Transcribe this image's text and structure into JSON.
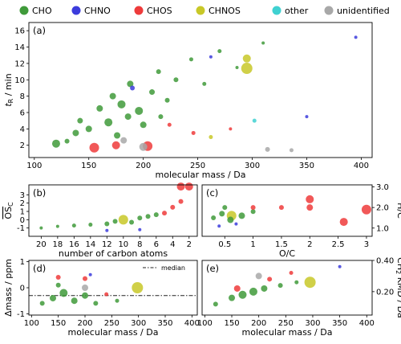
{
  "legend": [
    {
      "name": "CHO",
      "color": "#3f9a3a"
    },
    {
      "name": "CHNO",
      "color": "#3c3cdc"
    },
    {
      "name": "CHOS",
      "color": "#ee3b3b"
    },
    {
      "name": "CHNOS",
      "color": "#c8c828"
    },
    {
      "name": "other",
      "color": "#3fd1d1"
    },
    {
      "name": "unidentified",
      "color": "#a8a8a8"
    }
  ],
  "chart_data": [
    {
      "panel": "(a)",
      "type": "scatter",
      "xlabel": "molecular mass / Da",
      "ylabel": "t_R / min",
      "xlim": [
        95,
        410
      ],
      "ylim": [
        0.5,
        17
      ],
      "xticks": [
        100,
        150,
        200,
        250,
        300,
        350,
        400
      ],
      "yticks": [
        2,
        4,
        6,
        8,
        10,
        12,
        14,
        16
      ],
      "points": [
        {
          "class": "CHO",
          "x": 120,
          "y": 2.2,
          "s": 5
        },
        {
          "class": "CHO",
          "x": 138,
          "y": 3.5,
          "s": 4
        },
        {
          "class": "CHO",
          "x": 142,
          "y": 5.0,
          "s": 3.5
        },
        {
          "class": "CHO",
          "x": 150,
          "y": 4.0,
          "s": 4
        },
        {
          "class": "CHO",
          "x": 160,
          "y": 6.5,
          "s": 4
        },
        {
          "class": "CHO",
          "x": 168,
          "y": 4.8,
          "s": 5
        },
        {
          "class": "CHO",
          "x": 172,
          "y": 8.0,
          "s": 4
        },
        {
          "class": "CHO",
          "x": 180,
          "y": 7.0,
          "s": 5
        },
        {
          "class": "CHO",
          "x": 186,
          "y": 5.5,
          "s": 4
        },
        {
          "class": "CHO",
          "x": 188,
          "y": 9.5,
          "s": 4
        },
        {
          "class": "CHO",
          "x": 196,
          "y": 6.2,
          "s": 5
        },
        {
          "class": "CHO",
          "x": 200,
          "y": 4.5,
          "s": 4
        },
        {
          "class": "CHO",
          "x": 208,
          "y": 8.5,
          "s": 3.5
        },
        {
          "class": "CHO",
          "x": 214,
          "y": 11.0,
          "s": 3
        },
        {
          "class": "CHO",
          "x": 222,
          "y": 7.5,
          "s": 3
        },
        {
          "class": "CHO",
          "x": 230,
          "y": 10.0,
          "s": 3
        },
        {
          "class": "CHO",
          "x": 244,
          "y": 12.5,
          "s": 2.5
        },
        {
          "class": "CHO",
          "x": 256,
          "y": 9.5,
          "s": 2.5
        },
        {
          "class": "CHO",
          "x": 270,
          "y": 13.5,
          "s": 2.5
        },
        {
          "class": "CHO",
          "x": 286,
          "y": 11.5,
          "s": 2
        },
        {
          "class": "CHO",
          "x": 310,
          "y": 14.5,
          "s": 2
        },
        {
          "class": "CHO",
          "x": 130,
          "y": 2.5,
          "s": 3
        },
        {
          "class": "CHO",
          "x": 176,
          "y": 3.2,
          "s": 4
        },
        {
          "class": "CHO",
          "x": 216,
          "y": 5.5,
          "s": 3
        },
        {
          "class": "CHNO",
          "x": 190,
          "y": 9.0,
          "s": 3
        },
        {
          "class": "CHNO",
          "x": 262,
          "y": 12.8,
          "s": 2
        },
        {
          "class": "CHNO",
          "x": 350,
          "y": 5.5,
          "s": 2
        },
        {
          "class": "CHNO",
          "x": 395,
          "y": 15.2,
          "s": 2
        },
        {
          "class": "CHOS",
          "x": 155,
          "y": 1.7,
          "s": 6
        },
        {
          "class": "CHOS",
          "x": 175,
          "y": 2.0,
          "s": 5
        },
        {
          "class": "CHOS",
          "x": 204,
          "y": 1.9,
          "s": 6
        },
        {
          "class": "CHOS",
          "x": 224,
          "y": 4.5,
          "s": 2.5
        },
        {
          "class": "CHOS",
          "x": 246,
          "y": 3.5,
          "s": 2.5
        },
        {
          "class": "CHOS",
          "x": 280,
          "y": 4.0,
          "s": 2
        },
        {
          "class": "CHNOS",
          "x": 295,
          "y": 11.4,
          "s": 7
        },
        {
          "class": "CHNOS",
          "x": 295,
          "y": 12.6,
          "s": 5
        },
        {
          "class": "CHNOS",
          "x": 262,
          "y": 3.0,
          "s": 2.5
        },
        {
          "class": "other",
          "x": 302,
          "y": 5.0,
          "s": 2.5
        },
        {
          "class": "unidentified",
          "x": 200,
          "y": 1.8,
          "s": 5
        },
        {
          "class": "unidentified",
          "x": 182,
          "y": 2.6,
          "s": 4
        },
        {
          "class": "unidentified",
          "x": 314,
          "y": 1.5,
          "s": 3
        },
        {
          "class": "unidentified",
          "x": 336,
          "y": 1.4,
          "s": 2.5
        }
      ]
    },
    {
      "panel": "(b)",
      "type": "scatter",
      "xlabel": "number of carbon atoms",
      "ylabel": "OS_C",
      "xlim": [
        21.5,
        1
      ],
      "ylim": [
        -2.0,
        4.2
      ],
      "xticks": [
        20,
        18,
        16,
        14,
        12,
        10,
        8,
        6,
        4,
        2
      ],
      "yticks": [
        -1,
        0,
        1,
        2,
        3
      ],
      "points": [
        {
          "class": "CHO",
          "x": 20,
          "y": -1.0,
          "s": 2
        },
        {
          "class": "CHO",
          "x": 18,
          "y": -0.8,
          "s": 2
        },
        {
          "class": "CHO",
          "x": 16,
          "y": -0.7,
          "s": 2.5
        },
        {
          "class": "CHO",
          "x": 14,
          "y": -0.6,
          "s": 2.5
        },
        {
          "class": "CHO",
          "x": 12,
          "y": -0.5,
          "s": 3
        },
        {
          "class": "CHO",
          "x": 11,
          "y": -0.2,
          "s": 3
        },
        {
          "class": "CHO",
          "x": 9,
          "y": -0.3,
          "s": 3
        },
        {
          "class": "CHO",
          "x": 8,
          "y": 0.2,
          "s": 3
        },
        {
          "class": "CHO",
          "x": 7,
          "y": 0.4,
          "s": 3
        },
        {
          "class": "CHO",
          "x": 6,
          "y": 0.6,
          "s": 3
        },
        {
          "class": "CHNOS",
          "x": 10,
          "y": 0.0,
          "s": 6
        },
        {
          "class": "CHOS",
          "x": 5,
          "y": 0.8,
          "s": 3
        },
        {
          "class": "CHOS",
          "x": 4,
          "y": 1.5,
          "s": 3
        },
        {
          "class": "CHOS",
          "x": 3,
          "y": 2.2,
          "s": 3
        },
        {
          "class": "CHOS",
          "x": 3,
          "y": 4.0,
          "s": 5
        },
        {
          "class": "CHOS",
          "x": 2,
          "y": 4.0,
          "s": 5
        },
        {
          "class": "CHNO",
          "x": 12,
          "y": -1.3,
          "s": 2
        },
        {
          "class": "CHNO",
          "x": 8,
          "y": -1.2,
          "s": 2
        }
      ]
    },
    {
      "panel": "(c)",
      "type": "scatter",
      "xlabel": "O/C",
      "ylabel": "H/C",
      "xlim": [
        0.1,
        3.1
      ],
      "ylim": [
        0.6,
        3.1
      ],
      "xticks": [
        0.5,
        1.0,
        1.5,
        2.0,
        2.5,
        3.0
      ],
      "yticks": [
        1.0,
        2.0,
        3.0
      ],
      "points": [
        {
          "class": "CHO",
          "x": 0.3,
          "y": 1.5,
          "s": 3
        },
        {
          "class": "CHO",
          "x": 0.45,
          "y": 1.7,
          "s": 3.5
        },
        {
          "class": "CHO",
          "x": 0.6,
          "y": 1.4,
          "s": 4
        },
        {
          "class": "CHO",
          "x": 0.8,
          "y": 1.6,
          "s": 4
        },
        {
          "class": "CHO",
          "x": 1.0,
          "y": 1.8,
          "s": 3
        },
        {
          "class": "CHO",
          "x": 0.5,
          "y": 2.0,
          "s": 3
        },
        {
          "class": "CHNOS",
          "x": 0.62,
          "y": 1.6,
          "s": 6
        },
        {
          "class": "CHOS",
          "x": 1.0,
          "y": 2.0,
          "s": 3
        },
        {
          "class": "CHOS",
          "x": 1.5,
          "y": 2.0,
          "s": 3
        },
        {
          "class": "CHOS",
          "x": 2.0,
          "y": 2.0,
          "s": 4
        },
        {
          "class": "CHOS",
          "x": 2.0,
          "y": 2.4,
          "s": 5
        },
        {
          "class": "CHOS",
          "x": 2.6,
          "y": 1.3,
          "s": 5
        },
        {
          "class": "CHOS",
          "x": 3.0,
          "y": 1.9,
          "s": 6
        },
        {
          "class": "CHNO",
          "x": 0.4,
          "y": 1.1,
          "s": 2
        },
        {
          "class": "CHNO",
          "x": 0.7,
          "y": 1.2,
          "s": 2
        }
      ]
    },
    {
      "panel": "(d)",
      "type": "scatter",
      "xlabel": "molecular mass / Da",
      "ylabel": "Δmass / ppm",
      "xlim": [
        95,
        410
      ],
      "ylim": [
        -1.05,
        1.05
      ],
      "xticks": [
        100,
        150,
        200,
        250,
        300,
        350,
        400
      ],
      "yticks": [
        -1,
        0,
        1
      ],
      "median": -0.3,
      "median_label": "median",
      "points": [
        {
          "class": "CHO",
          "x": 120,
          "y": -0.6,
          "s": 3
        },
        {
          "class": "CHO",
          "x": 140,
          "y": -0.4,
          "s": 4
        },
        {
          "class": "CHO",
          "x": 160,
          "y": -0.2,
          "s": 5
        },
        {
          "class": "CHO",
          "x": 180,
          "y": -0.5,
          "s": 4
        },
        {
          "class": "CHO",
          "x": 200,
          "y": -0.3,
          "s": 4
        },
        {
          "class": "CHO",
          "x": 220,
          "y": -0.6,
          "s": 3
        },
        {
          "class": "CHO",
          "x": 260,
          "y": -0.5,
          "s": 2.5
        },
        {
          "class": "CHO",
          "x": 150,
          "y": 0.1,
          "s": 3
        },
        {
          "class": "CHNOS",
          "x": 298,
          "y": 0.0,
          "s": 7
        },
        {
          "class": "CHOS",
          "x": 150,
          "y": 0.4,
          "s": 3
        },
        {
          "class": "CHOS",
          "x": 200,
          "y": 0.35,
          "s": 3
        },
        {
          "class": "CHOS",
          "x": 240,
          "y": -0.25,
          "s": 2.5
        },
        {
          "class": "CHNO",
          "x": 210,
          "y": 0.5,
          "s": 2
        },
        {
          "class": "unidentified",
          "x": 200,
          "y": 0.0,
          "s": 4
        }
      ]
    },
    {
      "panel": "(e)",
      "type": "scatter",
      "xlabel": "molecular mass / Da",
      "ylabel": "CH2 KMD / Da",
      "xlim": [
        95,
        410
      ],
      "ylim": [
        0.05,
        0.4
      ],
      "xticks": [
        100,
        150,
        200,
        250,
        300,
        350,
        400
      ],
      "yticks": [
        0.2,
        0.4
      ],
      "points": [
        {
          "class": "CHO",
          "x": 120,
          "y": 0.12,
          "s": 3
        },
        {
          "class": "CHO",
          "x": 150,
          "y": 0.16,
          "s": 4
        },
        {
          "class": "CHO",
          "x": 170,
          "y": 0.18,
          "s": 5
        },
        {
          "class": "CHO",
          "x": 190,
          "y": 0.2,
          "s": 5
        },
        {
          "class": "CHO",
          "x": 210,
          "y": 0.22,
          "s": 4
        },
        {
          "class": "CHO",
          "x": 240,
          "y": 0.24,
          "s": 3
        },
        {
          "class": "CHO",
          "x": 270,
          "y": 0.26,
          "s": 2.5
        },
        {
          "class": "CHNOS",
          "x": 295,
          "y": 0.26,
          "s": 7
        },
        {
          "class": "CHOS",
          "x": 160,
          "y": 0.22,
          "s": 4
        },
        {
          "class": "CHOS",
          "x": 220,
          "y": 0.28,
          "s": 3
        },
        {
          "class": "CHOS",
          "x": 260,
          "y": 0.32,
          "s": 2.5
        },
        {
          "class": "unidentified",
          "x": 200,
          "y": 0.3,
          "s": 4
        },
        {
          "class": "CHNO",
          "x": 350,
          "y": 0.36,
          "s": 2
        }
      ]
    }
  ]
}
